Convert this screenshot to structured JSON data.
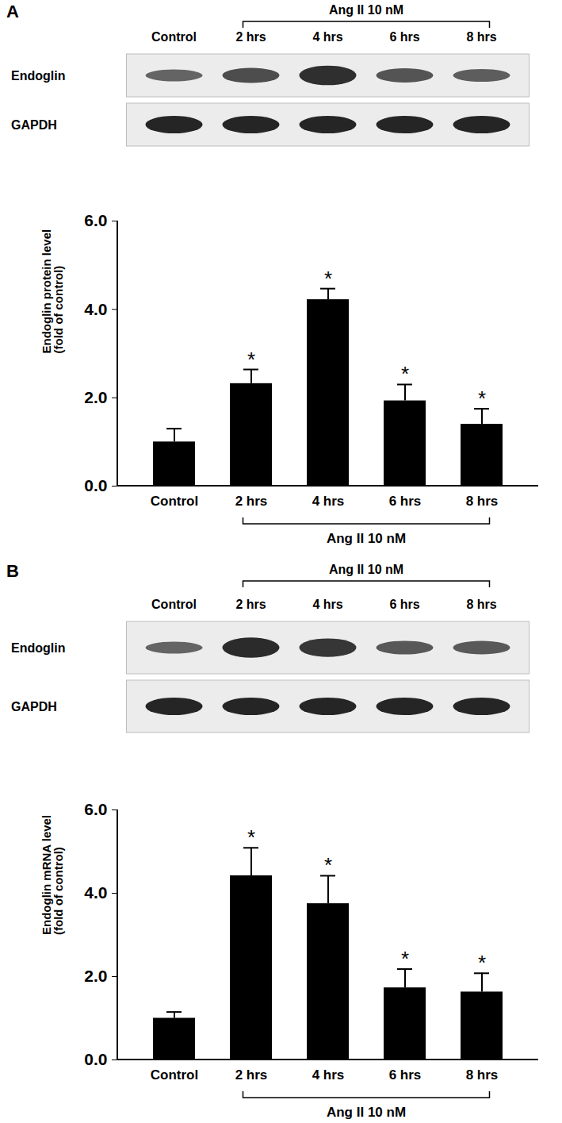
{
  "chart_data": [
    {
      "type": "bar",
      "panel": "A",
      "blot": {
        "rows": [
          "Endoglin",
          "GAPDH"
        ]
      },
      "bracket": {
        "label": "Ang II 10 nM",
        "categories": [
          "2 hrs",
          "4 hrs",
          "6 hrs",
          "8 hrs"
        ]
      },
      "ylabel": "Endoglin protein level\n(fold of control)",
      "categories": [
        "Control",
        "2 hrs",
        "4 hrs",
        "6 hrs",
        "8 hrs"
      ],
      "values": [
        1.0,
        2.32,
        4.22,
        1.93,
        1.4
      ],
      "errors": [
        0.3,
        0.32,
        0.25,
        0.37,
        0.35
      ],
      "significance": [
        null,
        "*",
        "*",
        "*",
        "*"
      ],
      "color": "#000000",
      "ylim": [
        0,
        6
      ],
      "yticks": [
        0,
        2,
        4,
        6
      ],
      "grid": false
    },
    {
      "type": "bar",
      "panel": "B",
      "blot": {
        "rows": [
          "Endoglin",
          "GAPDH"
        ]
      },
      "bracket": {
        "label": "Ang II 10 nM",
        "categories": [
          "2 hrs",
          "4 hrs",
          "6 hrs",
          "8 hrs"
        ]
      },
      "ylabel": "Endoglin mRNA level\n(fold of control)",
      "categories": [
        "Control",
        "2 hrs",
        "4 hrs",
        "6 hrs",
        "8 hrs"
      ],
      "values": [
        1.0,
        4.42,
        3.75,
        1.73,
        1.63
      ],
      "errors": [
        0.15,
        0.67,
        0.67,
        0.45,
        0.45
      ],
      "significance": [
        null,
        "*",
        "*",
        "*",
        "*"
      ],
      "color": "#000000",
      "ylim": [
        0,
        6
      ],
      "yticks": [
        0,
        2,
        4,
        6
      ],
      "grid": false
    }
  ]
}
